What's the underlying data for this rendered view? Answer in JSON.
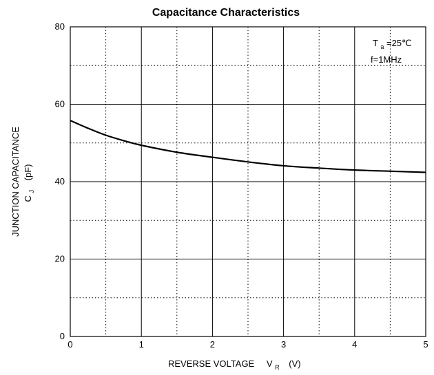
{
  "chart_data": {
    "type": "line",
    "title": "Capacitance Characteristics",
    "xlabel": {
      "text": "REVERSE VOLTAGE",
      "symbol": "V",
      "subscript": "R",
      "unit": "(V)"
    },
    "ylabel": {
      "text": "JUNCTION CAPACITANCE",
      "symbol": "C",
      "subscript": "J",
      "unit": "(pF)"
    },
    "xlim": [
      0,
      5
    ],
    "ylim": [
      0,
      80
    ],
    "x_ticks": [
      0,
      1,
      2,
      3,
      4,
      5
    ],
    "y_ticks": [
      0,
      20,
      40,
      60,
      80
    ],
    "grid": {
      "major": "solid",
      "minor": "dotted",
      "x_minor_step": 0.5,
      "y_minor_step": 10
    },
    "annotations": [
      {
        "symbol": "T",
        "subscript": "a",
        "text": "=25℃"
      },
      {
        "text": "f=1MHz"
      }
    ],
    "annotation_placement": "top-right",
    "series": [
      {
        "color": "#000000",
        "x": [
          0,
          0.25,
          0.5,
          0.75,
          1,
          1.5,
          2,
          2.5,
          3,
          3.5,
          4,
          4.5,
          5
        ],
        "y": [
          55.8,
          53.8,
          52.0,
          50.6,
          49.4,
          47.6,
          46.3,
          45.1,
          44.1,
          43.5,
          43.0,
          42.7,
          42.4
        ]
      }
    ]
  }
}
